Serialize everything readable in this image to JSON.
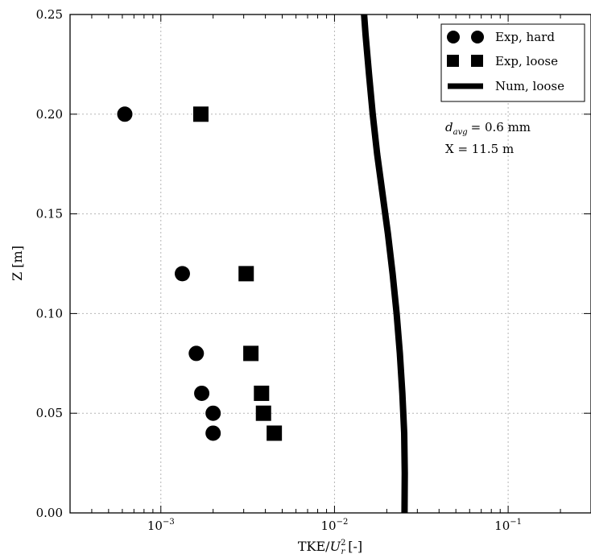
{
  "chart_data": {
    "type": "scatter",
    "title": "",
    "xlabel_main": "TKE/",
    "xlabel_var": "U",
    "xlabel_sup": "2",
    "xlabel_sub": "r",
    "xlabel_unit": "[-]",
    "ylabel": "Z [m]",
    "xscale": "log",
    "xlim": [
      0.0003,
      0.3
    ],
    "ylim": [
      0.0,
      0.25
    ],
    "grid": true,
    "legend_placement": "top-right",
    "x_ticks": [
      {
        "value": 0.001,
        "base": "10",
        "exp": "−3"
      },
      {
        "value": 0.01,
        "base": "10",
        "exp": "−2"
      },
      {
        "value": 0.1,
        "base": "10",
        "exp": "−1"
      }
    ],
    "y_ticks": [
      {
        "value": 0.0,
        "label": "0.00"
      },
      {
        "value": 0.05,
        "label": "0.05"
      },
      {
        "value": 0.1,
        "label": "0.10"
      },
      {
        "value": 0.15,
        "label": "0.15"
      },
      {
        "value": 0.2,
        "label": "0.20"
      },
      {
        "value": 0.25,
        "label": "0.25"
      }
    ],
    "series": [
      {
        "name": "Exp, hard",
        "marker": "circle",
        "points": [
          {
            "x": 0.00062,
            "y": 0.2
          },
          {
            "x": 0.00133,
            "y": 0.12
          },
          {
            "x": 0.0016,
            "y": 0.08
          },
          {
            "x": 0.00172,
            "y": 0.06
          },
          {
            "x": 0.002,
            "y": 0.05
          },
          {
            "x": 0.002,
            "y": 0.04
          }
        ]
      },
      {
        "name": "Exp, loose",
        "marker": "square",
        "points": [
          {
            "x": 0.0017,
            "y": 0.2
          },
          {
            "x": 0.0031,
            "y": 0.12
          },
          {
            "x": 0.0033,
            "y": 0.08
          },
          {
            "x": 0.0038,
            "y": 0.06
          },
          {
            "x": 0.0039,
            "y": 0.05
          },
          {
            "x": 0.0045,
            "y": 0.04
          }
        ]
      },
      {
        "name": "Num, loose",
        "marker": "line",
        "points": [
          {
            "x": 0.0253,
            "y": 0.0
          },
          {
            "x": 0.0254,
            "y": 0.02
          },
          {
            "x": 0.0252,
            "y": 0.04
          },
          {
            "x": 0.0246,
            "y": 0.06
          },
          {
            "x": 0.0238,
            "y": 0.08
          },
          {
            "x": 0.0228,
            "y": 0.1
          },
          {
            "x": 0.0216,
            "y": 0.12
          },
          {
            "x": 0.0203,
            "y": 0.14
          },
          {
            "x": 0.0189,
            "y": 0.16
          },
          {
            "x": 0.0176,
            "y": 0.18
          },
          {
            "x": 0.0166,
            "y": 0.2
          },
          {
            "x": 0.0158,
            "y": 0.22
          },
          {
            "x": 0.0151,
            "y": 0.24
          },
          {
            "x": 0.0148,
            "y": 0.25
          }
        ]
      }
    ],
    "annotation_var": "d",
    "annotation_sub": "avg",
    "annotation_value": "= 0.6 mm",
    "annotation_line2": "X = 11.5 m",
    "colors": {
      "marker": "#000000",
      "grid": "#b5b5b5"
    }
  }
}
